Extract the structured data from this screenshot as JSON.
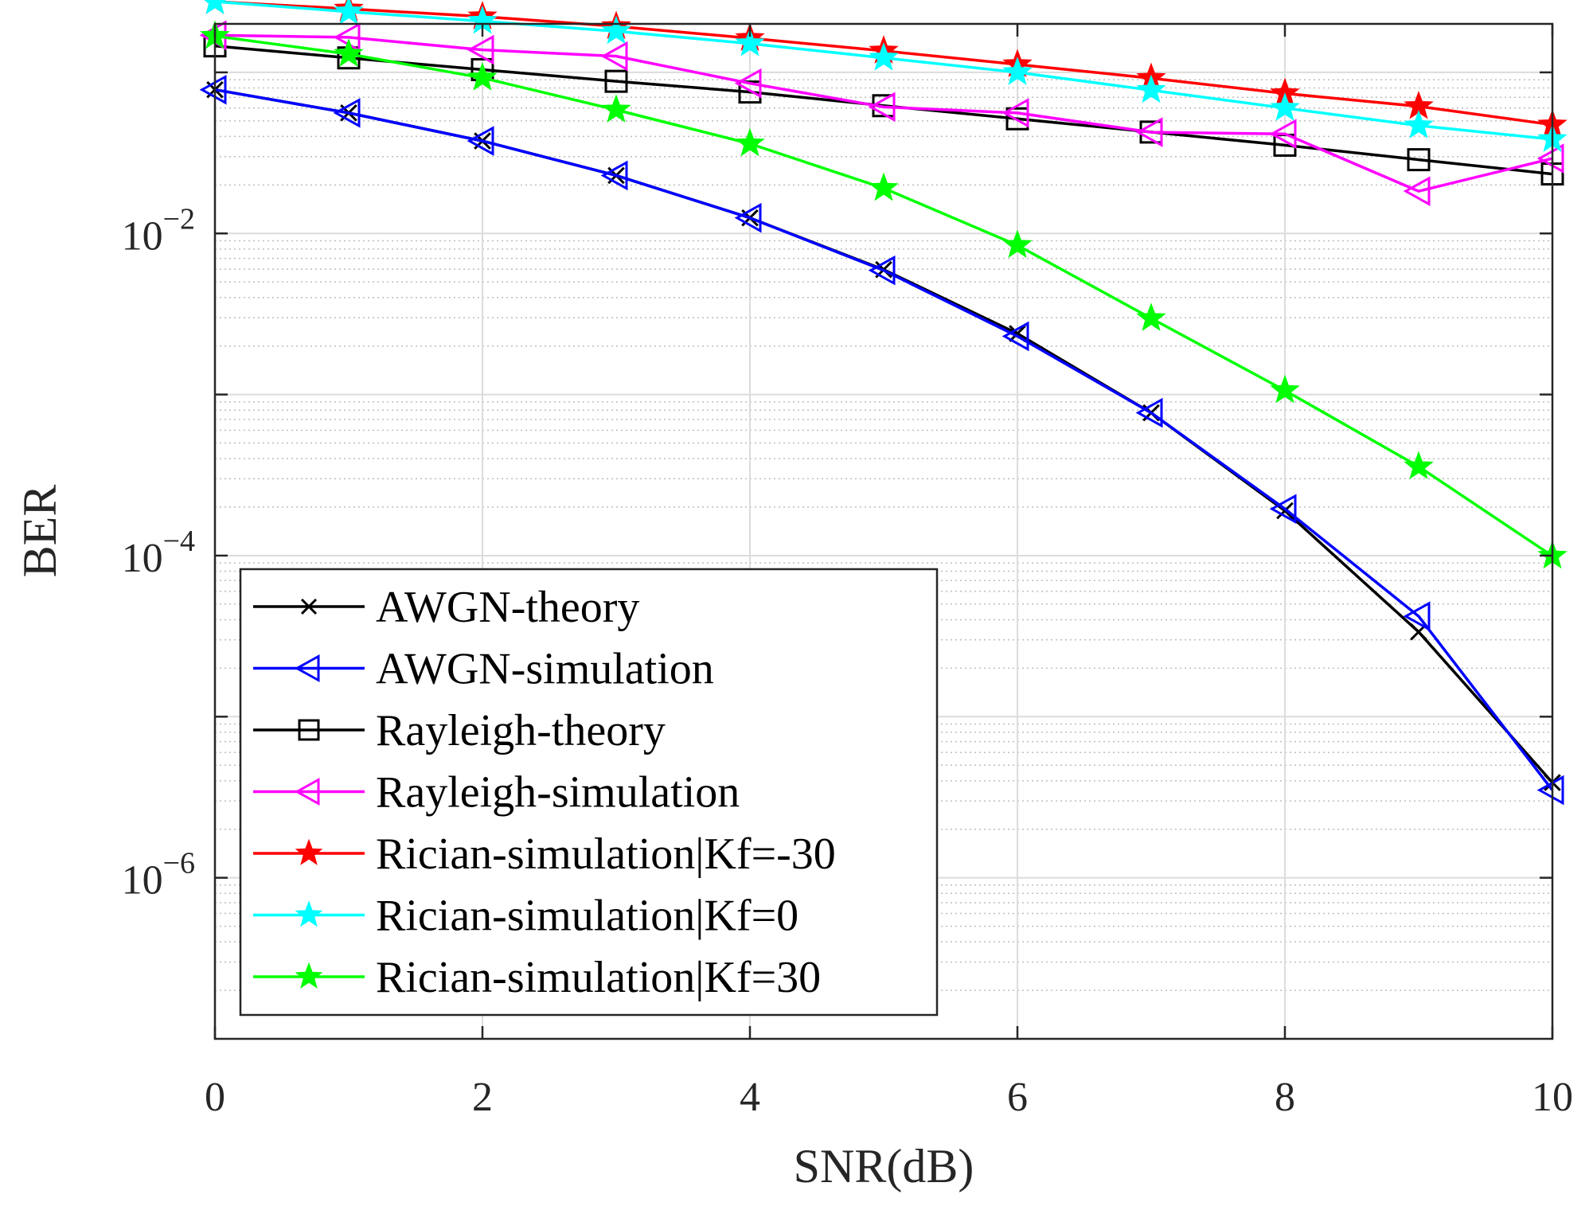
{
  "chart_data": {
    "type": "line",
    "title": "",
    "xlabel": "SNR(dB)",
    "ylabel": "BER",
    "xlim": [
      0,
      10
    ],
    "ylim": [
      1e-07,
      0.2
    ],
    "yscale": "log",
    "grid": true,
    "minor_grid": true,
    "legend_position": "bottom-left",
    "x_ticks": [
      0,
      2,
      4,
      6,
      8,
      10
    ],
    "x_tick_labels": [
      "0",
      "2",
      "4",
      "6",
      "8",
      "10"
    ],
    "y_ticks": [
      1e-06,
      0.0001,
      0.01
    ],
    "y_tick_labels": [
      {
        "base": "10",
        "exp": "−6"
      },
      {
        "base": "10",
        "exp": "−4"
      },
      {
        "base": "10",
        "exp": "−2"
      }
    ],
    "x": [
      0,
      1,
      2,
      3,
      4,
      5,
      6,
      7,
      8,
      9,
      10
    ],
    "series": [
      {
        "name": "AWGN-theory",
        "color": "#000000",
        "marker": "x",
        "values": [
          0.078,
          0.056,
          0.0375,
          0.0229,
          0.0125,
          0.00596,
          0.00239,
          0.00077,
          0.00019,
          3.36e-05,
          3.9e-06
        ]
      },
      {
        "name": "AWGN-simulation",
        "color": "#0000ff",
        "marker": "triangle-left",
        "values": [
          0.078,
          0.056,
          0.0375,
          0.0229,
          0.0125,
          0.0059,
          0.0023,
          0.00077,
          0.000195,
          4.2e-05,
          3.5e-06
        ]
      },
      {
        "name": "Rayleigh-theory",
        "color": "#000000",
        "marker": "square",
        "values": [
          0.146,
          0.123,
          0.104,
          0.088,
          0.0755,
          0.0621,
          0.0515,
          0.0426,
          0.0353,
          0.0287,
          0.0234
        ]
      },
      {
        "name": "Rayleigh-simulation",
        "color": "#ff00ff",
        "marker": "triangle-left",
        "values": [
          0.17,
          0.165,
          0.138,
          0.126,
          0.0855,
          0.061,
          0.056,
          0.0425,
          0.0415,
          0.0183,
          0.0292
        ]
      },
      {
        "name": "Rician-simulation|Kf=-30",
        "color": "#ff0000",
        "marker": "star",
        "values": [
          0.275,
          0.248,
          0.222,
          0.193,
          0.163,
          0.136,
          0.112,
          0.092,
          0.074,
          0.0615,
          0.0473
        ]
      },
      {
        "name": "Rician-simulation|Kf=0",
        "color": "#00ffff",
        "marker": "star",
        "values": [
          0.275,
          0.238,
          0.208,
          0.18,
          0.151,
          0.123,
          0.1,
          0.0775,
          0.06,
          0.0467,
          0.0384
        ]
      },
      {
        "name": "Rician-simulation|Kf=30",
        "color": "#00ff00",
        "marker": "star",
        "values": [
          0.168,
          0.13,
          0.0925,
          0.0585,
          0.0361,
          0.0191,
          0.00845,
          0.00297,
          0.00106,
          0.000357,
          9.95e-05
        ]
      }
    ]
  }
}
